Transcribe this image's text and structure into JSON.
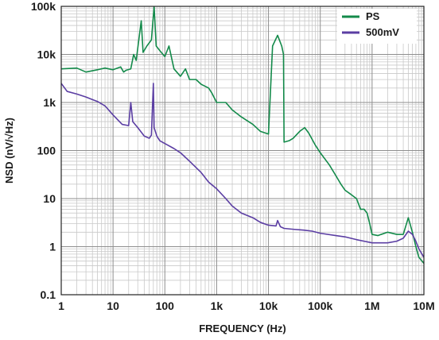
{
  "chart_data": {
    "type": "line",
    "title": "",
    "xlabel": "FREQUENCY (Hz)",
    "ylabel": "NSD (nV/√Hz)",
    "xscale": "log",
    "yscale": "log",
    "xlim": [
      1,
      10000000
    ],
    "ylim": [
      0.1,
      100000
    ],
    "grid": true,
    "legend_position": "top-right",
    "x_ticks": [
      {
        "value": 1,
        "label": "1"
      },
      {
        "value": 10,
        "label": "10"
      },
      {
        "value": 100,
        "label": "100"
      },
      {
        "value": 1000,
        "label": "1k"
      },
      {
        "value": 10000,
        "label": "10k"
      },
      {
        "value": 100000,
        "label": "100k"
      },
      {
        "value": 1000000,
        "label": "1M"
      },
      {
        "value": 10000000,
        "label": "10M"
      }
    ],
    "y_ticks": [
      {
        "value": 0.1,
        "label": "0.1"
      },
      {
        "value": 1,
        "label": "1"
      },
      {
        "value": 10,
        "label": "10"
      },
      {
        "value": 100,
        "label": "100"
      },
      {
        "value": 1000,
        "label": "1k"
      },
      {
        "value": 10000,
        "label": "10k"
      },
      {
        "value": 100000,
        "label": "100k"
      }
    ],
    "series": [
      {
        "name": "PS",
        "color": "#138a4a",
        "points": [
          [
            1,
            5000
          ],
          [
            2,
            5200
          ],
          [
            3,
            4300
          ],
          [
            5,
            4800
          ],
          [
            7,
            5200
          ],
          [
            10,
            4800
          ],
          [
            14,
            5500
          ],
          [
            16,
            4300
          ],
          [
            18,
            4700
          ],
          [
            22,
            5000
          ],
          [
            25,
            10000
          ],
          [
            28,
            7500
          ],
          [
            35,
            50000
          ],
          [
            38,
            11000
          ],
          [
            45,
            15000
          ],
          [
            55,
            20000
          ],
          [
            62,
            100000
          ],
          [
            68,
            15000
          ],
          [
            80,
            12000
          ],
          [
            100,
            9000
          ],
          [
            120,
            15000
          ],
          [
            150,
            5000
          ],
          [
            200,
            3500
          ],
          [
            250,
            5000
          ],
          [
            300,
            3000
          ],
          [
            400,
            3000
          ],
          [
            500,
            2400
          ],
          [
            700,
            2000
          ],
          [
            800,
            1600
          ],
          [
            1000,
            1000
          ],
          [
            1500,
            1000
          ],
          [
            2000,
            700
          ],
          [
            3000,
            500
          ],
          [
            5000,
            350
          ],
          [
            7000,
            250
          ],
          [
            10000,
            220
          ],
          [
            12000,
            15000
          ],
          [
            15000,
            25000
          ],
          [
            18000,
            15000
          ],
          [
            19500,
            10000
          ],
          [
            20000,
            150
          ],
          [
            25000,
            160
          ],
          [
            30000,
            180
          ],
          [
            40000,
            250
          ],
          [
            50000,
            300
          ],
          [
            60000,
            230
          ],
          [
            80000,
            130
          ],
          [
            100000,
            90
          ],
          [
            150000,
            50
          ],
          [
            200000,
            30
          ],
          [
            250000,
            20
          ],
          [
            300000,
            15
          ],
          [
            400000,
            12
          ],
          [
            500000,
            10
          ],
          [
            600000,
            6
          ],
          [
            700000,
            6
          ],
          [
            800000,
            5
          ],
          [
            900000,
            3
          ],
          [
            1000000,
            1.8
          ],
          [
            1300000,
            1.7
          ],
          [
            1500000,
            1.8
          ],
          [
            2000000,
            2
          ],
          [
            3000000,
            1.8
          ],
          [
            4000000,
            1.8
          ],
          [
            5000000,
            4
          ],
          [
            6000000,
            2
          ],
          [
            7000000,
            1
          ],
          [
            8000000,
            0.6
          ],
          [
            10000000,
            0.45
          ]
        ]
      },
      {
        "name": "500mV",
        "color": "#5b3ea3",
        "points": [
          [
            1,
            2500
          ],
          [
            1.3,
            1700
          ],
          [
            2,
            1500
          ],
          [
            3,
            1300
          ],
          [
            4,
            1150
          ],
          [
            5,
            1050
          ],
          [
            7,
            850
          ],
          [
            10,
            550
          ],
          [
            15,
            350
          ],
          [
            20,
            330
          ],
          [
            22,
            1000
          ],
          [
            24,
            400
          ],
          [
            30,
            300
          ],
          [
            40,
            200
          ],
          [
            50,
            180
          ],
          [
            55,
            210
          ],
          [
            60,
            2500
          ],
          [
            62,
            300
          ],
          [
            70,
            200
          ],
          [
            80,
            160
          ],
          [
            100,
            140
          ],
          [
            150,
            110
          ],
          [
            200,
            90
          ],
          [
            300,
            60
          ],
          [
            500,
            35
          ],
          [
            700,
            22
          ],
          [
            1000,
            16
          ],
          [
            1500,
            10
          ],
          [
            2000,
            7
          ],
          [
            3000,
            5
          ],
          [
            5000,
            4
          ],
          [
            7000,
            3.2
          ],
          [
            10000,
            2.8
          ],
          [
            14000,
            2.7
          ],
          [
            15000,
            3.5
          ],
          [
            17000,
            2.6
          ],
          [
            20000,
            2.4
          ],
          [
            30000,
            2.3
          ],
          [
            50000,
            2.2
          ],
          [
            70000,
            2.1
          ],
          [
            100000,
            1.9
          ],
          [
            200000,
            1.7
          ],
          [
            300000,
            1.6
          ],
          [
            500000,
            1.4
          ],
          [
            700000,
            1.3
          ],
          [
            1000000,
            1.2
          ],
          [
            2000000,
            1.2
          ],
          [
            3000000,
            1.3
          ],
          [
            4000000,
            1.5
          ],
          [
            5000000,
            2.1
          ],
          [
            6000000,
            1.8
          ],
          [
            7000000,
            1.3
          ],
          [
            8000000,
            0.9
          ],
          [
            10000000,
            0.6
          ]
        ]
      }
    ]
  }
}
